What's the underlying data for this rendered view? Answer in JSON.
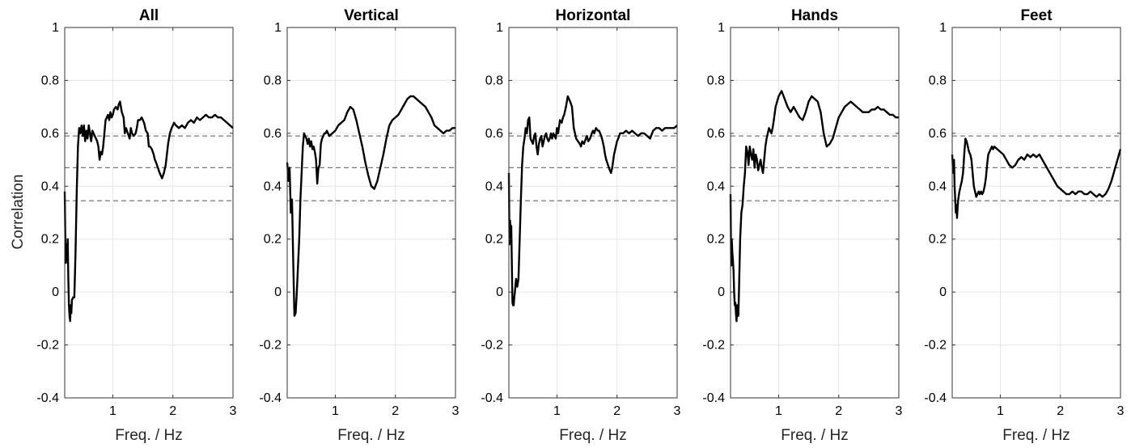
{
  "chart_data": [
    {
      "type": "line",
      "title": "All",
      "xlabel": "Freq. / Hz",
      "ylabel": "Correlation",
      "xlim": [
        0.2,
        3
      ],
      "ylim": [
        -0.4,
        1
      ],
      "xticks": [
        "1",
        "2",
        "3"
      ],
      "yticks": [
        "1",
        "0.8",
        "0.6",
        "0.4",
        "0.2",
        "0",
        "-0.2",
        "-0.4"
      ],
      "grid": true,
      "thresholds": [
        0.345,
        0.47,
        0.59
      ],
      "series": [
        {
          "x": [
            0.2,
            0.21,
            0.22,
            0.23,
            0.24,
            0.25,
            0.26,
            0.27,
            0.28,
            0.29,
            0.3,
            0.31,
            0.32,
            0.34,
            0.36,
            0.38,
            0.4,
            0.42,
            0.44,
            0.46,
            0.48,
            0.5,
            0.52,
            0.54,
            0.56,
            0.58,
            0.6,
            0.62,
            0.64,
            0.66,
            0.68,
            0.7,
            0.72,
            0.74,
            0.76,
            0.78,
            0.8,
            0.82,
            0.84,
            0.86,
            0.88,
            0.9,
            0.92,
            0.94,
            0.96,
            0.98,
            1.0,
            1.02,
            1.05,
            1.08,
            1.1,
            1.12,
            1.15,
            1.18,
            1.2,
            1.22,
            1.25,
            1.28,
            1.3,
            1.32,
            1.35,
            1.38,
            1.4,
            1.42,
            1.45,
            1.48,
            1.5,
            1.52,
            1.55,
            1.58,
            1.6,
            1.62,
            1.65,
            1.68,
            1.7,
            1.72,
            1.75,
            1.78,
            1.8,
            1.82,
            1.85,
            1.88,
            1.9,
            1.92,
            1.95,
            1.98,
            2.0,
            2.02,
            2.05,
            2.1,
            2.15,
            2.2,
            2.25,
            2.3,
            2.35,
            2.4,
            2.45,
            2.5,
            2.55,
            2.6,
            2.65,
            2.7,
            2.75,
            2.8,
            2.85,
            2.9,
            2.95,
            3.0
          ],
          "y": [
            0.38,
            0.2,
            0.11,
            0.18,
            0.12,
            0.2,
            0.05,
            -0.05,
            -0.09,
            -0.11,
            -0.05,
            -0.08,
            -0.03,
            -0.02,
            -0.02,
            0.15,
            0.38,
            0.55,
            0.62,
            0.6,
            0.63,
            0.59,
            0.63,
            0.57,
            0.61,
            0.58,
            0.63,
            0.6,
            0.57,
            0.61,
            0.6,
            0.59,
            0.58,
            0.57,
            0.55,
            0.5,
            0.53,
            0.52,
            0.55,
            0.6,
            0.65,
            0.66,
            0.67,
            0.65,
            0.68,
            0.66,
            0.67,
            0.69,
            0.7,
            0.69,
            0.71,
            0.72,
            0.68,
            0.66,
            0.6,
            0.62,
            0.6,
            0.58,
            0.62,
            0.6,
            0.59,
            0.6,
            0.62,
            0.65,
            0.65,
            0.66,
            0.65,
            0.64,
            0.61,
            0.6,
            0.55,
            0.55,
            0.54,
            0.52,
            0.5,
            0.49,
            0.47,
            0.45,
            0.44,
            0.43,
            0.45,
            0.48,
            0.52,
            0.56,
            0.6,
            0.62,
            0.63,
            0.64,
            0.63,
            0.62,
            0.63,
            0.62,
            0.64,
            0.65,
            0.64,
            0.66,
            0.65,
            0.66,
            0.67,
            0.66,
            0.66,
            0.67,
            0.66,
            0.66,
            0.65,
            0.64,
            0.63,
            0.62
          ]
        }
      ]
    },
    {
      "type": "line",
      "title": "Vertical",
      "xlabel": "Freq. / Hz",
      "ylabel": "",
      "xlim": [
        0.2,
        3
      ],
      "ylim": [
        -0.4,
        1
      ],
      "xticks": [
        "1",
        "2",
        "3"
      ],
      "yticks": [
        "1",
        "0.8",
        "0.6",
        "0.4",
        "0.2",
        "0",
        "-0.2",
        "-0.4"
      ],
      "grid": true,
      "thresholds": [
        0.345,
        0.47,
        0.59
      ],
      "series": [
        {
          "x": [
            0.2,
            0.22,
            0.24,
            0.26,
            0.28,
            0.3,
            0.32,
            0.34,
            0.36,
            0.38,
            0.4,
            0.42,
            0.44,
            0.46,
            0.48,
            0.5,
            0.52,
            0.54,
            0.56,
            0.58,
            0.6,
            0.62,
            0.64,
            0.66,
            0.68,
            0.7,
            0.72,
            0.74,
            0.76,
            0.78,
            0.8,
            0.82,
            0.84,
            0.86,
            0.88,
            0.9,
            0.95,
            1.0,
            1.05,
            1.1,
            1.15,
            1.2,
            1.25,
            1.3,
            1.35,
            1.4,
            1.45,
            1.5,
            1.55,
            1.6,
            1.65,
            1.7,
            1.75,
            1.8,
            1.85,
            1.9,
            1.95,
            2.0,
            2.05,
            2.1,
            2.15,
            2.2,
            2.25,
            2.3,
            2.35,
            2.4,
            2.45,
            2.5,
            2.55,
            2.6,
            2.65,
            2.7,
            2.75,
            2.8,
            2.85,
            2.9,
            2.95,
            3.0
          ],
          "y": [
            0.49,
            0.42,
            0.47,
            0.3,
            0.35,
            0.12,
            -0.09,
            -0.08,
            0.0,
            0.1,
            0.2,
            0.35,
            0.45,
            0.55,
            0.6,
            0.59,
            0.58,
            0.56,
            0.58,
            0.55,
            0.57,
            0.54,
            0.55,
            0.53,
            0.5,
            0.41,
            0.47,
            0.48,
            0.56,
            0.58,
            0.59,
            0.6,
            0.6,
            0.61,
            0.6,
            0.59,
            0.6,
            0.61,
            0.63,
            0.64,
            0.65,
            0.68,
            0.7,
            0.69,
            0.65,
            0.6,
            0.55,
            0.49,
            0.44,
            0.4,
            0.39,
            0.42,
            0.47,
            0.52,
            0.58,
            0.63,
            0.65,
            0.66,
            0.67,
            0.69,
            0.71,
            0.73,
            0.74,
            0.74,
            0.73,
            0.72,
            0.71,
            0.7,
            0.68,
            0.66,
            0.63,
            0.62,
            0.61,
            0.6,
            0.61,
            0.61,
            0.62,
            0.62
          ]
        }
      ]
    },
    {
      "type": "line",
      "title": "Horizontal",
      "xlabel": "Freq. / Hz",
      "ylabel": "",
      "xlim": [
        0.2,
        3
      ],
      "ylim": [
        -0.4,
        1
      ],
      "xticks": [
        "1",
        "2",
        "3"
      ],
      "yticks": [
        "1",
        "0.8",
        "0.6",
        "0.4",
        "0.2",
        "0",
        "-0.2",
        "-0.4"
      ],
      "grid": true,
      "thresholds": [
        0.345,
        0.47,
        0.59
      ],
      "series": [
        {
          "x": [
            0.2,
            0.21,
            0.22,
            0.23,
            0.24,
            0.25,
            0.26,
            0.27,
            0.28,
            0.29,
            0.3,
            0.32,
            0.34,
            0.36,
            0.38,
            0.4,
            0.42,
            0.44,
            0.46,
            0.48,
            0.5,
            0.52,
            0.54,
            0.56,
            0.58,
            0.6,
            0.62,
            0.64,
            0.66,
            0.68,
            0.7,
            0.72,
            0.74,
            0.76,
            0.78,
            0.8,
            0.82,
            0.84,
            0.86,
            0.88,
            0.9,
            0.92,
            0.94,
            0.96,
            0.98,
            1.0,
            1.02,
            1.05,
            1.08,
            1.1,
            1.12,
            1.15,
            1.18,
            1.2,
            1.22,
            1.25,
            1.28,
            1.3,
            1.32,
            1.35,
            1.38,
            1.4,
            1.42,
            1.45,
            1.48,
            1.5,
            1.52,
            1.55,
            1.58,
            1.6,
            1.62,
            1.65,
            1.68,
            1.7,
            1.72,
            1.75,
            1.78,
            1.8,
            1.82,
            1.85,
            1.88,
            1.9,
            1.92,
            1.95,
            1.98,
            2.0,
            2.02,
            2.05,
            2.1,
            2.15,
            2.2,
            2.25,
            2.3,
            2.35,
            2.4,
            2.45,
            2.5,
            2.55,
            2.6,
            2.65,
            2.7,
            2.75,
            2.8,
            2.85,
            2.9,
            2.95,
            3.0
          ],
          "y": [
            0.45,
            0.18,
            0.27,
            0.22,
            0.25,
            0.1,
            -0.04,
            -0.05,
            -0.05,
            -0.02,
            0.0,
            0.05,
            0.02,
            0.05,
            0.2,
            0.35,
            0.48,
            0.55,
            0.58,
            0.62,
            0.6,
            0.65,
            0.66,
            0.58,
            0.57,
            0.56,
            0.59,
            0.6,
            0.55,
            0.52,
            0.56,
            0.58,
            0.59,
            0.55,
            0.57,
            0.59,
            0.6,
            0.58,
            0.57,
            0.58,
            0.6,
            0.58,
            0.6,
            0.59,
            0.58,
            0.62,
            0.6,
            0.65,
            0.64,
            0.66,
            0.67,
            0.7,
            0.74,
            0.73,
            0.72,
            0.7,
            0.62,
            0.6,
            0.58,
            0.57,
            0.56,
            0.55,
            0.57,
            0.56,
            0.58,
            0.59,
            0.57,
            0.58,
            0.6,
            0.61,
            0.6,
            0.62,
            0.61,
            0.61,
            0.6,
            0.58,
            0.55,
            0.52,
            0.5,
            0.48,
            0.46,
            0.45,
            0.47,
            0.52,
            0.55,
            0.57,
            0.58,
            0.6,
            0.6,
            0.61,
            0.6,
            0.61,
            0.6,
            0.59,
            0.6,
            0.6,
            0.59,
            0.58,
            0.61,
            0.62,
            0.62,
            0.61,
            0.62,
            0.62,
            0.62,
            0.62,
            0.63
          ]
        }
      ]
    },
    {
      "type": "line",
      "title": "Hands",
      "xlabel": "Freq. / Hz",
      "ylabel": "",
      "xlim": [
        0.2,
        3
      ],
      "ylim": [
        -0.4,
        1
      ],
      "xticks": [
        "1",
        "2",
        "3"
      ],
      "yticks": [
        "1",
        "0.8",
        "0.6",
        "0.4",
        "0.2",
        "0",
        "-0.2",
        "-0.4"
      ],
      "grid": true,
      "thresholds": [
        0.345,
        0.47,
        0.59
      ],
      "series": [
        {
          "x": [
            0.2,
            0.21,
            0.22,
            0.23,
            0.24,
            0.25,
            0.26,
            0.27,
            0.28,
            0.29,
            0.3,
            0.31,
            0.32,
            0.33,
            0.34,
            0.35,
            0.36,
            0.38,
            0.4,
            0.42,
            0.44,
            0.46,
            0.48,
            0.5,
            0.52,
            0.54,
            0.56,
            0.58,
            0.6,
            0.62,
            0.64,
            0.66,
            0.68,
            0.7,
            0.72,
            0.74,
            0.76,
            0.78,
            0.8,
            0.82,
            0.84,
            0.86,
            0.88,
            0.9,
            0.92,
            0.95,
            1.0,
            1.05,
            1.1,
            1.15,
            1.2,
            1.25,
            1.3,
            1.35,
            1.4,
            1.45,
            1.5,
            1.55,
            1.6,
            1.65,
            1.7,
            1.75,
            1.8,
            1.85,
            1.9,
            1.95,
            2.0,
            2.05,
            2.1,
            2.15,
            2.2,
            2.25,
            2.3,
            2.35,
            2.4,
            2.45,
            2.5,
            2.55,
            2.6,
            2.65,
            2.7,
            2.75,
            2.8,
            2.85,
            2.9,
            2.95,
            3.0
          ],
          "y": [
            0.37,
            0.1,
            0.2,
            0.15,
            0.12,
            0.08,
            0.0,
            -0.05,
            -0.04,
            -0.08,
            -0.11,
            -0.05,
            -0.06,
            -0.09,
            0.0,
            0.1,
            0.2,
            0.3,
            0.33,
            0.4,
            0.45,
            0.55,
            0.53,
            0.48,
            0.55,
            0.52,
            0.5,
            0.54,
            0.47,
            0.52,
            0.5,
            0.46,
            0.48,
            0.5,
            0.47,
            0.45,
            0.5,
            0.55,
            0.58,
            0.6,
            0.62,
            0.61,
            0.6,
            0.62,
            0.65,
            0.7,
            0.74,
            0.76,
            0.73,
            0.7,
            0.68,
            0.7,
            0.68,
            0.66,
            0.65,
            0.68,
            0.72,
            0.74,
            0.73,
            0.72,
            0.68,
            0.6,
            0.55,
            0.56,
            0.58,
            0.62,
            0.66,
            0.68,
            0.7,
            0.71,
            0.72,
            0.71,
            0.7,
            0.69,
            0.68,
            0.68,
            0.68,
            0.69,
            0.69,
            0.7,
            0.69,
            0.69,
            0.68,
            0.67,
            0.67,
            0.66,
            0.66
          ]
        }
      ]
    },
    {
      "type": "line",
      "title": "Feet",
      "xlabel": "Freq. / Hz",
      "ylabel": "",
      "xlim": [
        0.2,
        3
      ],
      "ylim": [
        -0.4,
        1
      ],
      "xticks": [
        "1",
        "2",
        "3"
      ],
      "yticks": [
        "1",
        "0.8",
        "0.6",
        "0.4",
        "0.2",
        "0",
        "-0.2",
        "-0.4"
      ],
      "grid": true,
      "thresholds": [
        0.345,
        0.47,
        0.59
      ],
      "series": [
        {
          "x": [
            0.2,
            0.21,
            0.22,
            0.23,
            0.24,
            0.25,
            0.26,
            0.27,
            0.28,
            0.29,
            0.3,
            0.32,
            0.34,
            0.36,
            0.38,
            0.4,
            0.42,
            0.44,
            0.46,
            0.48,
            0.5,
            0.52,
            0.54,
            0.56,
            0.58,
            0.6,
            0.62,
            0.64,
            0.66,
            0.68,
            0.7,
            0.72,
            0.74,
            0.76,
            0.78,
            0.8,
            0.82,
            0.84,
            0.86,
            0.88,
            0.9,
            0.95,
            1.0,
            1.05,
            1.1,
            1.15,
            1.2,
            1.25,
            1.3,
            1.35,
            1.4,
            1.45,
            1.5,
            1.55,
            1.6,
            1.65,
            1.7,
            1.75,
            1.8,
            1.85,
            1.9,
            1.95,
            2.0,
            2.05,
            2.1,
            2.15,
            2.2,
            2.25,
            2.3,
            2.35,
            2.4,
            2.45,
            2.5,
            2.55,
            2.6,
            2.65,
            2.7,
            2.75,
            2.8,
            2.85,
            2.9,
            2.95,
            3.0
          ],
          "y": [
            0.52,
            0.47,
            0.45,
            0.5,
            0.4,
            0.35,
            0.3,
            0.33,
            0.28,
            0.32,
            0.35,
            0.38,
            0.4,
            0.42,
            0.45,
            0.52,
            0.58,
            0.57,
            0.55,
            0.53,
            0.52,
            0.5,
            0.45,
            0.4,
            0.38,
            0.36,
            0.37,
            0.38,
            0.37,
            0.38,
            0.37,
            0.38,
            0.4,
            0.43,
            0.48,
            0.52,
            0.53,
            0.54,
            0.55,
            0.54,
            0.55,
            0.54,
            0.53,
            0.52,
            0.5,
            0.48,
            0.47,
            0.48,
            0.5,
            0.51,
            0.5,
            0.52,
            0.51,
            0.52,
            0.51,
            0.52,
            0.5,
            0.48,
            0.46,
            0.44,
            0.42,
            0.4,
            0.39,
            0.38,
            0.37,
            0.37,
            0.38,
            0.37,
            0.38,
            0.38,
            0.37,
            0.37,
            0.38,
            0.37,
            0.36,
            0.37,
            0.36,
            0.37,
            0.39,
            0.42,
            0.46,
            0.5,
            0.54
          ]
        }
      ]
    }
  ]
}
